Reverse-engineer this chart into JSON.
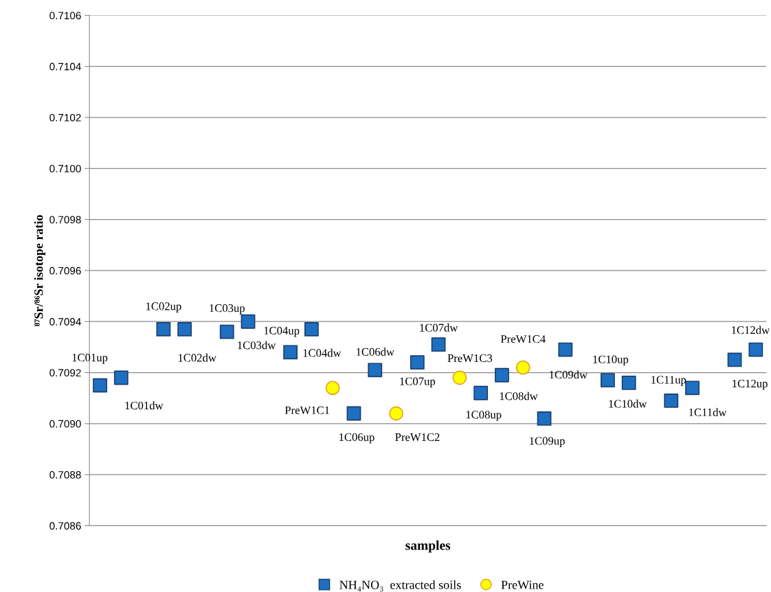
{
  "chart_data": {
    "type": "scatter",
    "xlabel": "samples",
    "ylabel": "⁸⁷Sr/⁸⁶Sr isotope ratio",
    "ylim": [
      0.7086,
      0.7106
    ],
    "yticks": [
      {
        "value": 0.7086,
        "label": "0.7086"
      },
      {
        "value": 0.7088,
        "label": "0.7088"
      },
      {
        "value": 0.709,
        "label": "0.7090"
      },
      {
        "value": 0.7092,
        "label": "0.7092"
      },
      {
        "value": 0.7094,
        "label": "0.7094"
      },
      {
        "value": 0.7096,
        "label": "0.7096"
      },
      {
        "value": 0.7098,
        "label": "0.7098"
      },
      {
        "value": 0.71,
        "label": "0.7100"
      },
      {
        "value": 0.7102,
        "label": "0.7102"
      },
      {
        "value": 0.7104,
        "label": "0.7104"
      },
      {
        "value": 0.7106,
        "label": "0.7106"
      }
    ],
    "categories": [
      null,
      null,
      null,
      null,
      null,
      null,
      null,
      null,
      null,
      null,
      null,
      null,
      null,
      null,
      null,
      null,
      null,
      null,
      null,
      null,
      null,
      null,
      null,
      null,
      null,
      null,
      null,
      null,
      null,
      null,
      null,
      null
    ],
    "grid": "y",
    "legend": "bottom",
    "series": [
      {
        "name": "NH₄NO₃  extracted soils",
        "color": "#1f6fc0",
        "marker": "square",
        "values": [
          0.70915,
          0.70918,
          null,
          0.70937,
          0.70937,
          null,
          0.70936,
          0.7094,
          null,
          0.70928,
          0.70937,
          null,
          0.70904,
          0.70921,
          null,
          0.70924,
          0.70931,
          null,
          0.70912,
          0.70919,
          null,
          0.70902,
          0.70929,
          null,
          0.70917,
          0.70916,
          null,
          0.70909,
          0.70914,
          null,
          0.70925,
          0.70929
        ]
      },
      {
        "name": "PreWine",
        "color": "#ffff00",
        "marker": "circle",
        "values": [
          null,
          null,
          null,
          null,
          null,
          null,
          null,
          null,
          null,
          null,
          null,
          0.70914,
          null,
          null,
          0.70904,
          null,
          null,
          0.70918,
          null,
          null,
          0.70922,
          null,
          null,
          null,
          null,
          null,
          null,
          null,
          null,
          null,
          null,
          null
        ]
      }
    ],
    "annotations": [
      "1C01up",
      "1C01dw",
      "1C02up",
      "1C02dw",
      "1C03up",
      "1C03dw",
      "1C04up",
      "1C04dw",
      "PreW1C1",
      "1C06up",
      "1C06dw",
      "PreW1C2",
      "1C07up",
      "1C07dw",
      "PreW1C3",
      "1C08up",
      "1C08dw",
      "PreW1C4",
      "1C09up",
      "1C09dw",
      "1C10up",
      "1C10dw",
      "1C11up",
      "1C11dw",
      "1C12up",
      "1C12dw"
    ]
  }
}
